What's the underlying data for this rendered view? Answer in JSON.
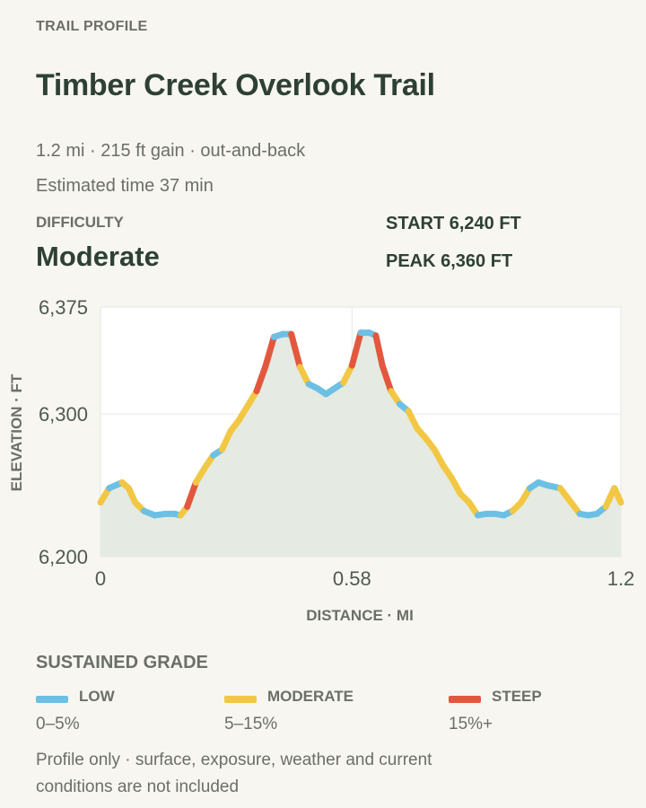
{
  "header": {
    "eyebrow": "TRAIL PROFILE",
    "title": "Timber Creek Overlook Trail",
    "summary": "1.2 mi · 215 ft gain · out-and-back",
    "time": "Estimated time 37 min"
  },
  "difficulty": {
    "label": "DIFFICULTY",
    "value": "Moderate"
  },
  "stats": {
    "start": "START 6,240 FT",
    "peak": "PEAK 6,360 FT"
  },
  "grade_legend": {
    "title": "SUSTAINED GRADE",
    "items": [
      {
        "name": "LOW",
        "range": "0–5%",
        "color": "#6cc0e3"
      },
      {
        "name": "MODERATE",
        "range": "5–15%",
        "color": "#f2c744"
      },
      {
        "name": "STEEP",
        "range": "15%+",
        "color": "#e4573f"
      }
    ]
  },
  "footnote": "Profile only · surface, exposure, weather and current conditions are not included",
  "chart_data": {
    "type": "area",
    "xlabel": "DISTANCE · MI",
    "ylabel": "ELEVATION · FT",
    "xlim": [
      0,
      1.2
    ],
    "ylim": [
      6200,
      6375
    ],
    "x_ticks": [
      "0",
      "0.58",
      "1.2"
    ],
    "x_tick_values": [
      0,
      0.58,
      1.2
    ],
    "y_ticks": [
      "6,200",
      "6,300",
      "6,375"
    ],
    "y_tick_values": [
      6200,
      6300,
      6375
    ],
    "grid": true,
    "fill_color": "#e5ebe2",
    "line_colors_by_grade": {
      "low": "#6cc0e3",
      "moderate": "#f2c744",
      "steep": "#e4573f"
    },
    "series": [
      {
        "x": [
          0,
          0.02,
          0.035,
          0.05,
          0.065,
          0.08,
          0.1,
          0.125,
          0.15,
          0.17,
          0.185,
          0.2,
          0.22,
          0.24,
          0.26,
          0.28,
          0.3,
          0.32,
          0.34,
          0.36,
          0.38,
          0.4,
          0.42,
          0.44,
          0.46,
          0.48,
          0.5,
          0.52,
          0.54,
          0.56,
          0.58,
          0.6,
          0.62,
          0.635,
          0.65,
          0.67,
          0.69,
          0.71,
          0.73,
          0.75,
          0.77,
          0.79,
          0.81,
          0.83,
          0.85,
          0.87,
          0.89,
          0.91,
          0.93,
          0.95,
          0.97,
          0.99,
          1.01,
          1.03,
          1.06,
          1.085,
          1.105,
          1.125,
          1.145,
          1.165,
          1.185,
          1.2
        ],
        "y": [
          6238,
          6248,
          6250,
          6252,
          6248,
          6238,
          6232,
          6229,
          6230,
          6230,
          6229,
          6235,
          6252,
          6262,
          6271,
          6275,
          6288,
          6296,
          6306,
          6316,
          6333,
          6354,
          6356,
          6356,
          6333,
          6321,
          6318,
          6314,
          6318,
          6322,
          6334,
          6357,
          6357,
          6355,
          6334,
          6316,
          6307,
          6302,
          6290,
          6283,
          6275,
          6264,
          6255,
          6244,
          6238,
          6229,
          6230,
          6230,
          6229,
          6232,
          6238,
          6248,
          6252,
          6250,
          6248,
          6238,
          6230,
          6229,
          6230,
          6235,
          6248,
          6238
        ]
      }
    ]
  }
}
